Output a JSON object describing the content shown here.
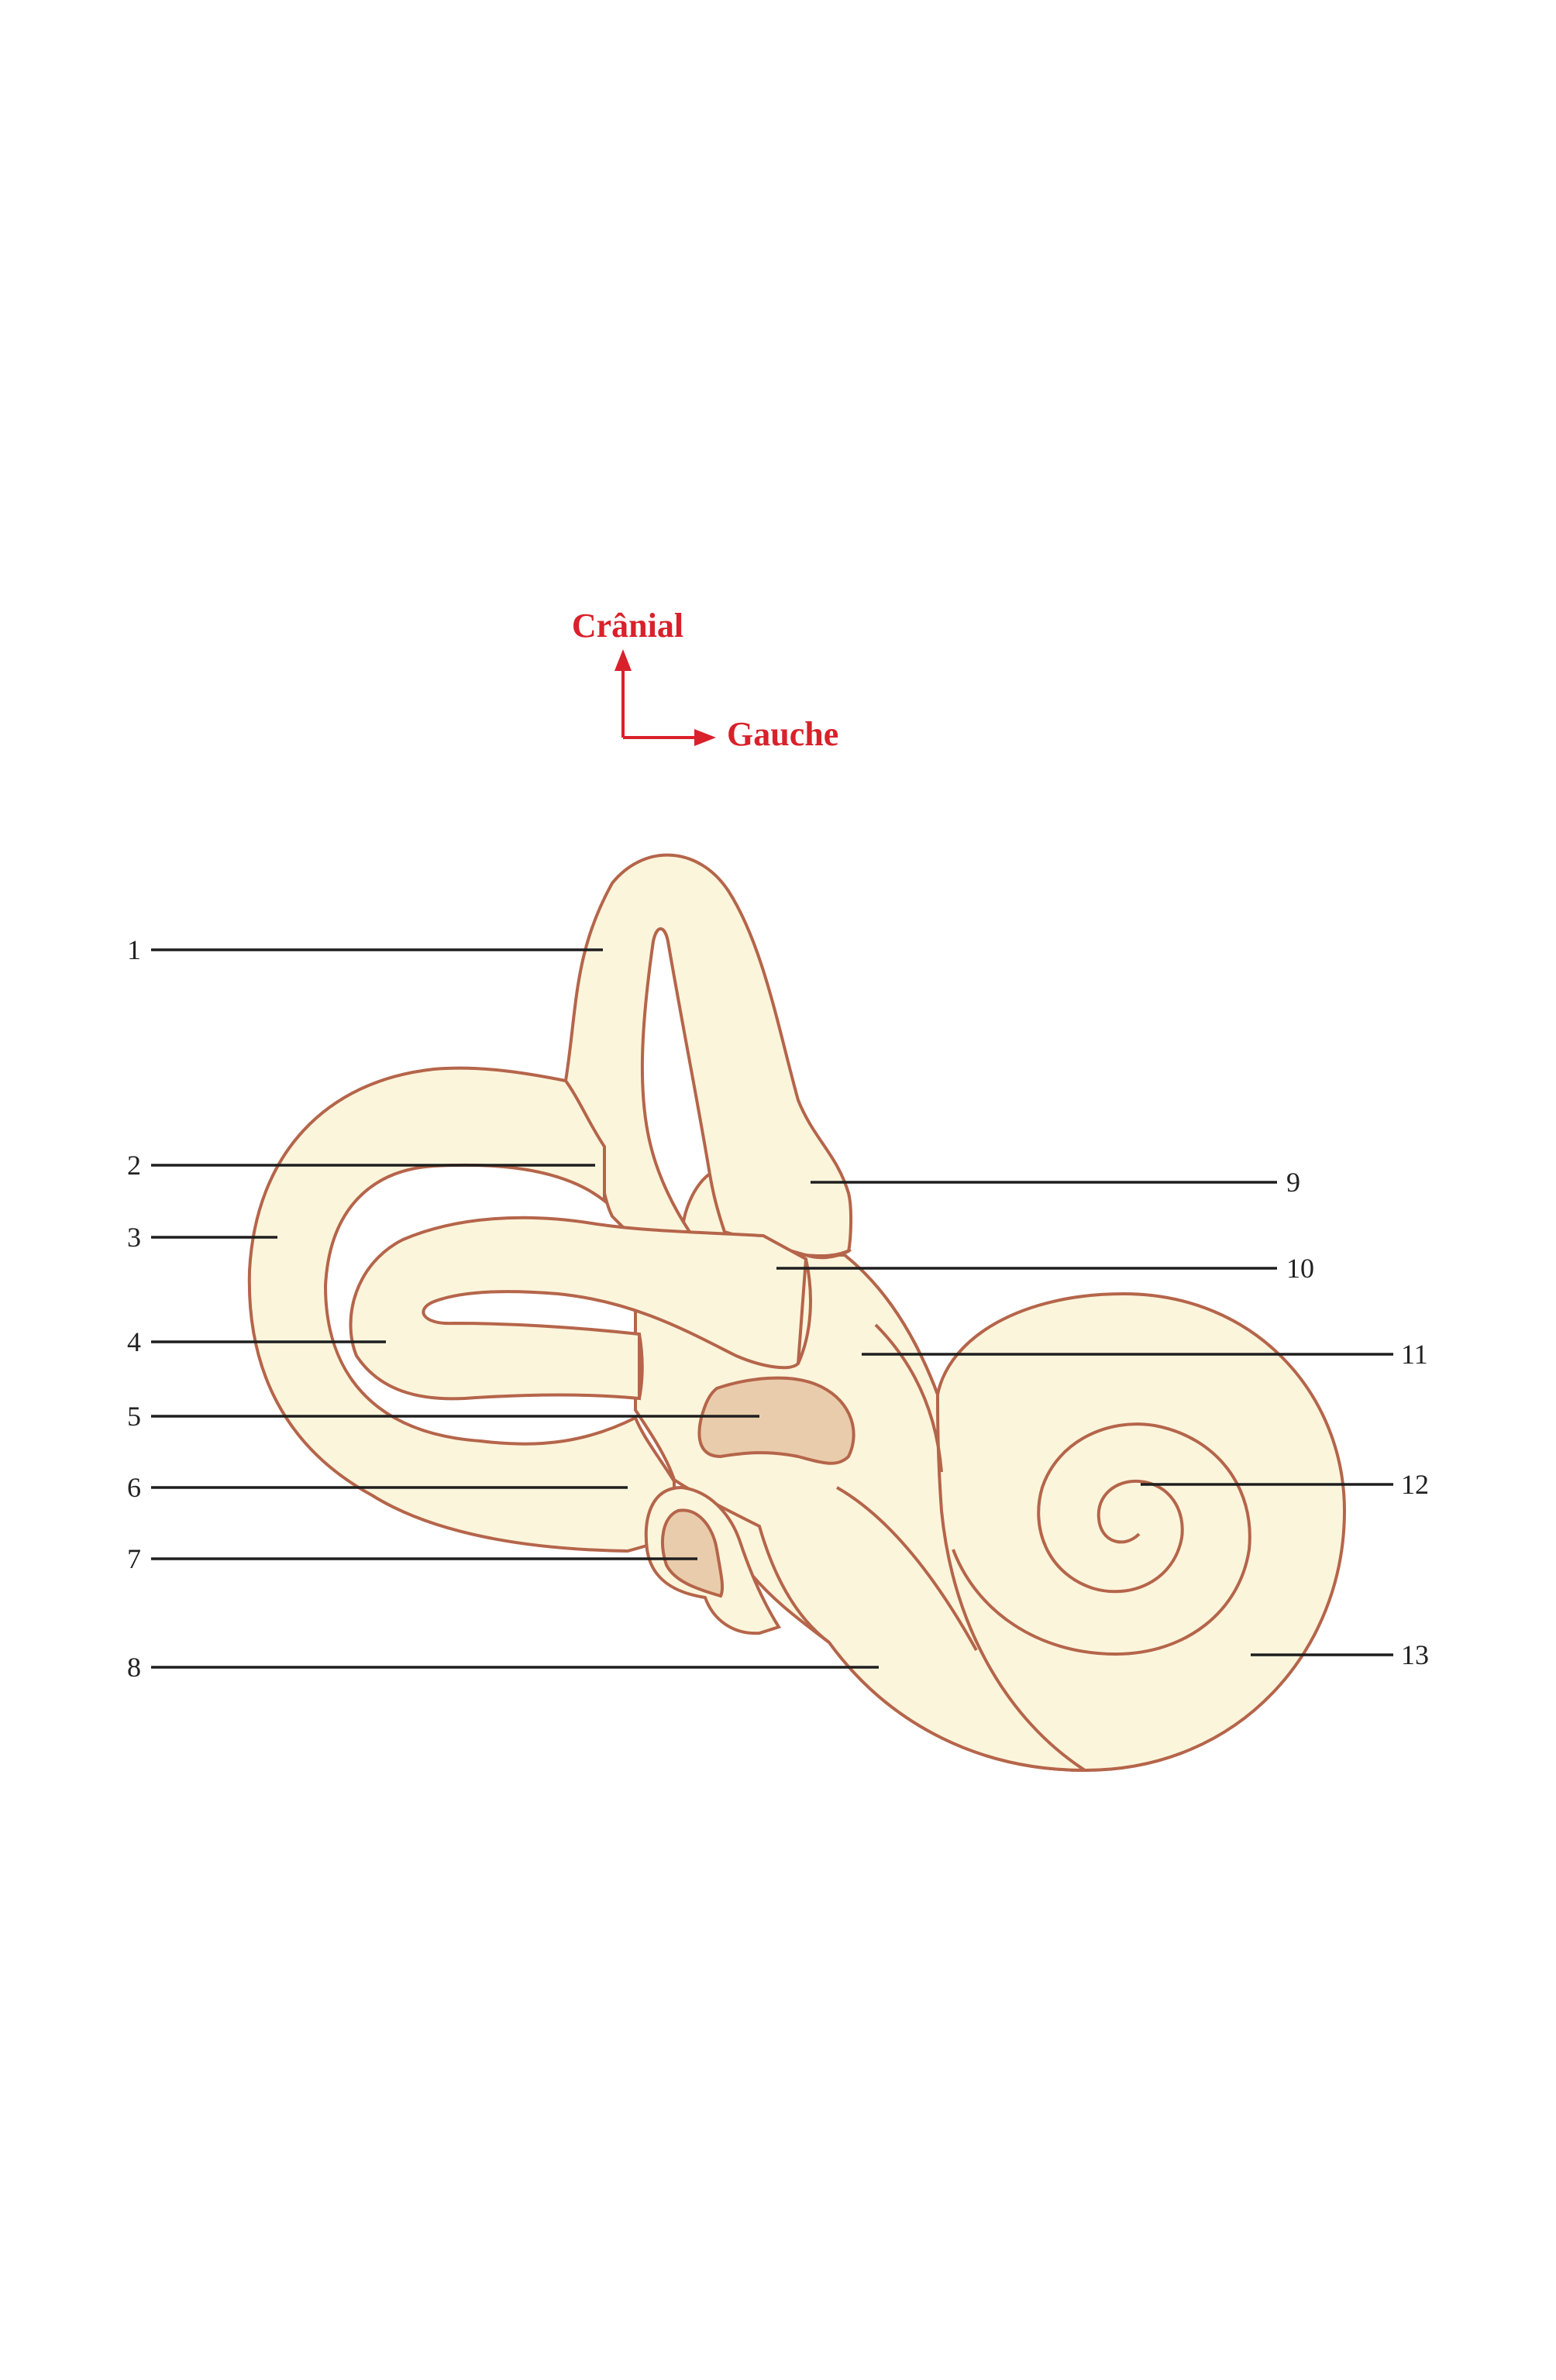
{
  "orientation": {
    "up_label": "Crânial",
    "right_label": "Gauche",
    "color": "#d9212b"
  },
  "colors": {
    "fill": "#fbf5dc",
    "outline": "#b5654a",
    "window_fill": "#e9ccab",
    "leader": "#1e1e1e"
  },
  "labels": [
    {
      "id": "1",
      "text": "1"
    },
    {
      "id": "2",
      "text": "2"
    },
    {
      "id": "3",
      "text": "3"
    },
    {
      "id": "4",
      "text": "4"
    },
    {
      "id": "5",
      "text": "5"
    },
    {
      "id": "6",
      "text": "6"
    },
    {
      "id": "7",
      "text": "7"
    },
    {
      "id": "8",
      "text": "8"
    },
    {
      "id": "9",
      "text": "9"
    },
    {
      "id": "10",
      "text": "10"
    },
    {
      "id": "11",
      "text": "11"
    },
    {
      "id": "12",
      "text": "12"
    },
    {
      "id": "13",
      "text": "13"
    }
  ]
}
